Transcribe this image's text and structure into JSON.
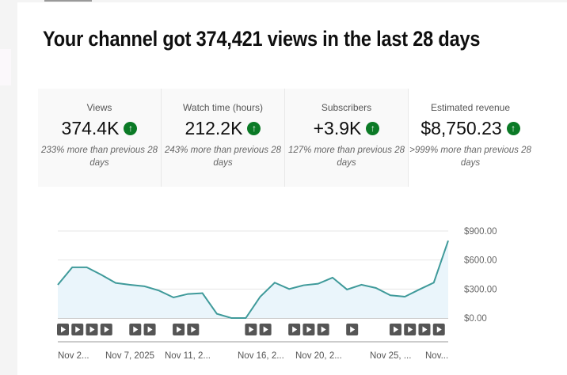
{
  "header": {
    "title": "Your channel got 374,421 views in the last 28 days"
  },
  "cards": [
    {
      "label": "Views",
      "value": "374.4K",
      "delta": "233% more than previous 28 days",
      "trend": "up"
    },
    {
      "label": "Watch time (hours)",
      "value": "212.2K",
      "delta": "243% more than previous 28 days",
      "trend": "up"
    },
    {
      "label": "Subscribers",
      "value": "+3.9K",
      "delta": "127% more than previous 28 days",
      "trend": "up"
    },
    {
      "label": "Estimated revenue",
      "value": "$8,750.23",
      "delta": ">999% more than previous 28 days",
      "trend": "up",
      "selected": true
    }
  ],
  "colors": {
    "line": "#3f9a9a",
    "fill": "#eaf5fb",
    "up": "#0b7a26",
    "marker": "#555555"
  },
  "chart_data": {
    "type": "area",
    "ylabel": "",
    "ylim": [
      0,
      900
    ],
    "yticks": [
      "$0.00",
      "$300.00",
      "$600.00",
      "$900.00"
    ],
    "ytick_values": [
      0,
      300,
      600,
      900
    ],
    "xtick_labels": [
      "Nov 2...",
      "Nov 7, 2025",
      "Nov 11, 2...",
      "Nov 16, 2...",
      "Nov 20, 2...",
      "Nov 25, ...",
      "Nov..."
    ],
    "values": [
      344,
      525,
      525,
      448,
      363,
      344,
      328,
      284,
      213,
      249,
      257,
      44,
      0,
      0,
      221,
      366,
      300,
      339,
      355,
      418,
      295,
      344,
      311,
      235,
      221,
      295,
      366,
      800
    ],
    "video_markers": [
      1,
      1,
      1,
      1,
      0,
      1,
      1,
      0,
      1,
      1,
      0,
      0,
      0,
      1,
      1,
      0,
      1,
      1,
      1,
      0,
      1,
      0,
      0,
      1,
      1,
      1,
      1,
      0
    ],
    "grid": true
  }
}
